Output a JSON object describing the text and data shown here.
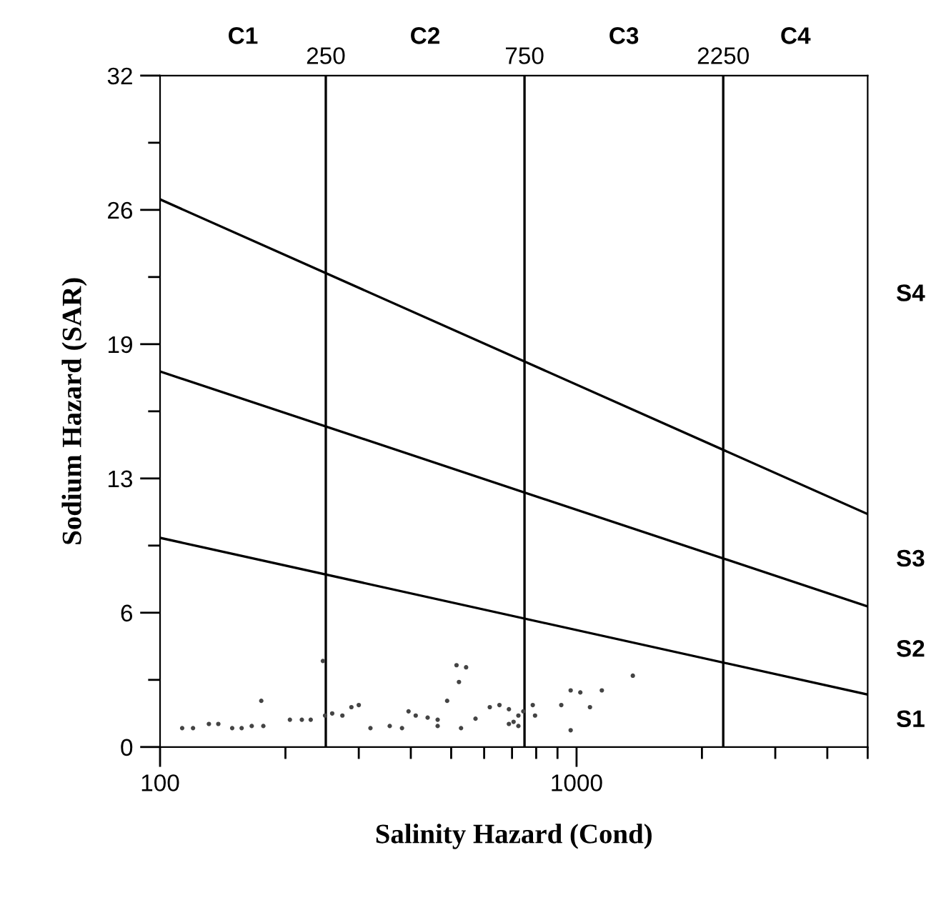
{
  "chart_data": {
    "type": "scatter",
    "xlabel": "Salinity Hazard (Cond)",
    "ylabel": "Sodium Hazard (SAR)",
    "log": "x",
    "xlim": [
      100,
      5000
    ],
    "ylim": [
      0,
      32
    ],
    "xticks": [
      100,
      {
        "value": 200,
        "label": null
      },
      {
        "value": 300,
        "label": null
      },
      {
        "value": 400,
        "label": null
      },
      {
        "value": 500,
        "label": null
      },
      {
        "value": 600,
        "label": null
      },
      {
        "value": 700,
        "label": null
      },
      {
        "value": 800,
        "label": null
      },
      {
        "value": 900,
        "label": null
      },
      1000,
      {
        "value": 2000,
        "label": null
      },
      {
        "value": 3000,
        "label": null
      },
      {
        "value": 4000,
        "label": null
      },
      {
        "value": 5000,
        "label": null
      }
    ],
    "yticks": [
      0,
      {
        "value": 3.2,
        "label": null
      },
      {
        "value": 6.4,
        "label": "6"
      },
      {
        "value": 9.6,
        "label": null
      },
      {
        "value": 12.8,
        "label": "13"
      },
      {
        "value": 16,
        "label": null
      },
      {
        "value": 19.2,
        "label": "19"
      },
      {
        "value": 22.4,
        "label": null
      },
      {
        "value": 25.6,
        "label": "26"
      },
      {
        "value": 28.8,
        "label": null
      },
      32
    ],
    "grid": false,
    "legend": false,
    "ref_lines": [
      {
        "axis": "x",
        "value": 250,
        "label": "250",
        "color": "#000000"
      },
      {
        "axis": "x",
        "value": 750,
        "label": "750",
        "color": "#000000"
      },
      {
        "axis": "x",
        "value": 2250,
        "label": "2250",
        "color": "#000000"
      }
    ],
    "annotations": [
      "C1",
      "C2",
      "C3",
      "C4",
      "S1",
      "S2",
      "S3",
      "S4"
    ],
    "series": [
      {
        "type": "line",
        "color": "#000000",
        "marker": "none",
        "line_style": "solid",
        "x": [
          100,
          5000
        ],
        "values": [
          9.97,
          2.5
        ]
      },
      {
        "type": "line",
        "color": "#000000",
        "marker": "none",
        "line_style": "solid",
        "x": [
          100,
          5000
        ],
        "values": [
          17.9,
          6.7
        ]
      },
      {
        "type": "line",
        "color": "#000000",
        "marker": "none",
        "line_style": "solid",
        "x": [
          100,
          5000
        ],
        "values": [
          26.1,
          11.1
        ]
      },
      {
        "color": "#444444",
        "marker": "circle",
        "x": [
          113,
          120,
          131,
          138,
          149,
          157,
          166,
          177,
          175,
          205,
          219,
          230,
          246,
          249,
          259,
          274,
          288,
          300,
          320,
          356,
          381,
          395,
          411,
          439,
          464,
          489,
          515,
          543,
          522,
          464,
          528,
          572,
          619,
          653,
          688,
          706,
          725,
          745,
          785,
          795,
          688,
          725,
          919,
          968,
          1021,
          1077,
          1150,
          968,
          1365
        ],
        "values": [
          0.9,
          0.9,
          1.1,
          1.1,
          0.9,
          0.9,
          1.0,
          1.0,
          2.2,
          1.3,
          1.3,
          1.3,
          4.1,
          1.5,
          1.6,
          1.5,
          1.9,
          2.0,
          0.9,
          1.0,
          0.9,
          1.7,
          1.5,
          1.4,
          1.3,
          2.2,
          3.9,
          3.8,
          3.1,
          1.0,
          0.9,
          1.35,
          1.9,
          2.0,
          1.8,
          1.2,
          1.5,
          1.7,
          2.0,
          1.5,
          1.1,
          1.0,
          2.0,
          2.7,
          2.6,
          1.9,
          2.7,
          0.8,
          3.4
        ]
      }
    ]
  }
}
